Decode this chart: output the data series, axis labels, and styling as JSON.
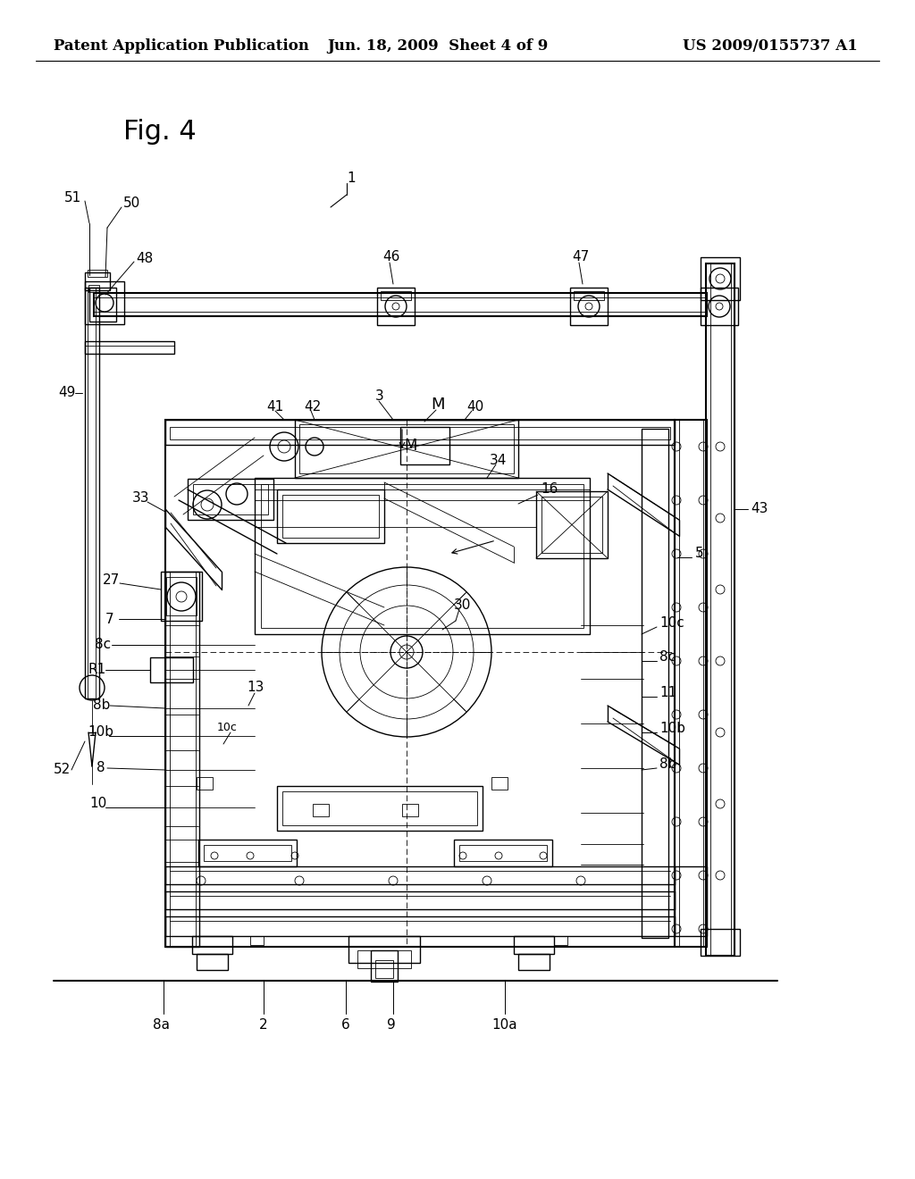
{
  "background_color": "#ffffff",
  "header_left": "Patent Application Publication",
  "header_center": "Jun. 18, 2009  Sheet 4 of 9",
  "header_right": "US 2009/0155737 A1",
  "header_fontsize": 12,
  "fig_label_fontsize": 22,
  "page_width": 10.24,
  "page_height": 13.2,
  "dpi": 100,
  "line_color": "#000000",
  "lw": 1.0,
  "lw_thin": 0.6,
  "lw_thick": 1.5,
  "fs_label": 11,
  "fs_small": 9
}
